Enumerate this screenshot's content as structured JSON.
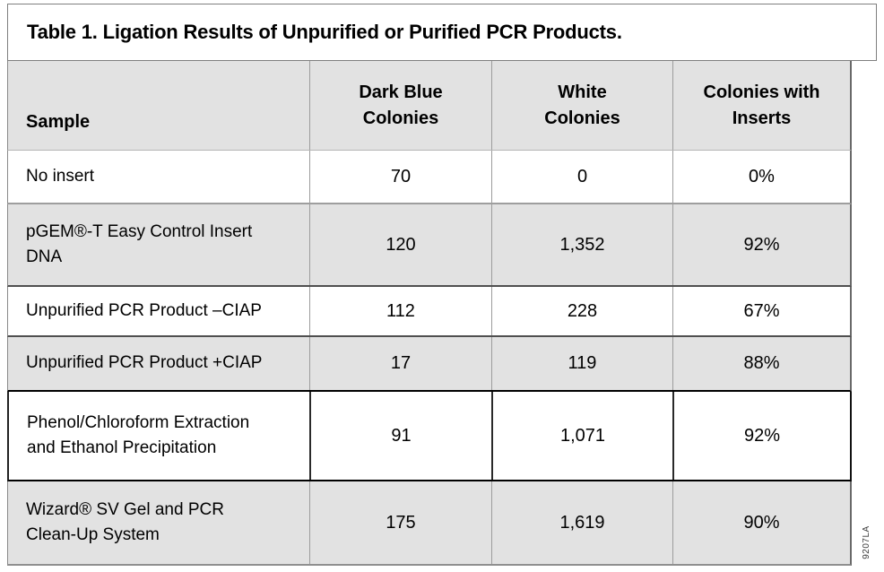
{
  "title": "Table 1. Ligation Results of Unpurified or Purified PCR Products.",
  "footnote": "9207LA",
  "colors": {
    "shaded_row": "#e2e2e2",
    "grid_light": "#9c9c9c",
    "grid_dark": "#4f4f4f",
    "highlight_outline": "#000000"
  },
  "table": {
    "headers": {
      "sample": "Sample",
      "dark_blue_line1": "Dark Blue",
      "dark_blue_line2": "Colonies",
      "white_line1": "White",
      "white_line2": "Colonies",
      "inserts_line1": "Colonies with",
      "inserts_line2": "Inserts"
    },
    "rows": [
      {
        "sample": "No insert",
        "dark_blue": "70",
        "white": "0",
        "inserts": "0%"
      },
      {
        "sample": "pGEM®-T Easy Control Insert DNA",
        "dark_blue": "120",
        "white": "1,352",
        "inserts": "92%"
      },
      {
        "sample": "Unpurified PCR Product –CIAP",
        "dark_blue": "112",
        "white": "228",
        "inserts": "67%"
      },
      {
        "sample": "Unpurified PCR Product +CIAP",
        "dark_blue": "17",
        "white": "119",
        "inserts": "88%"
      },
      {
        "sample": "Phenol/Chloroform Extraction and Ethanol Precipitation",
        "dark_blue": "91",
        "white": "1,071",
        "inserts": "92%"
      },
      {
        "sample": "Wizard® SV Gel and PCR Clean-Up System",
        "dark_blue": "175",
        "white": "1,619",
        "inserts": "90%"
      }
    ]
  }
}
